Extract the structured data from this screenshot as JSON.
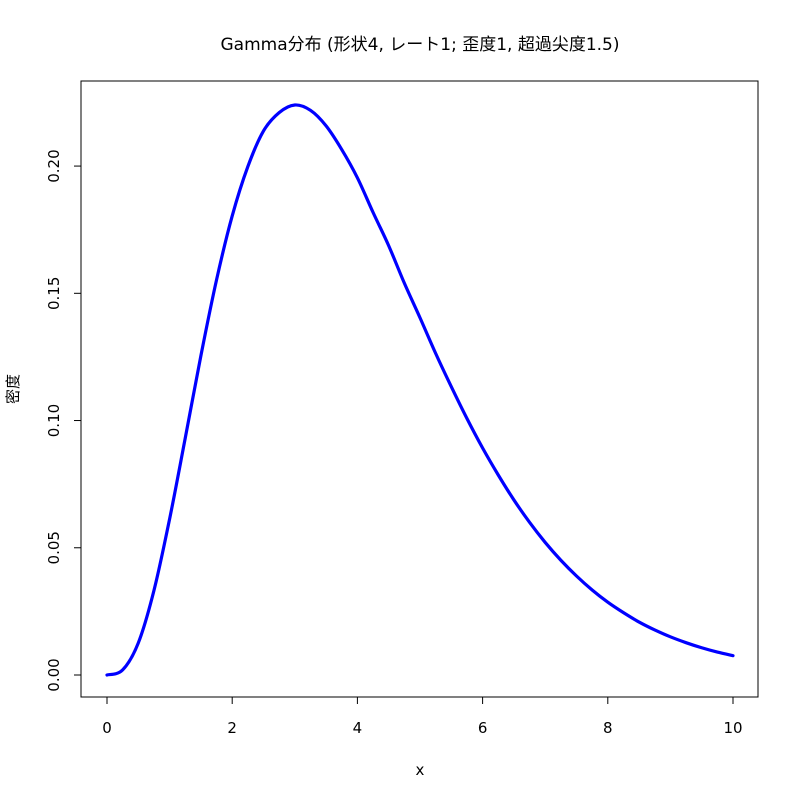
{
  "chart_data": {
    "type": "line",
    "title": "Gamma分布 (形状4, レート1; 歪度1, 超過尖度1.5)",
    "xlabel": "x",
    "ylabel": "密度",
    "xlim": [
      0,
      10
    ],
    "ylim": [
      0,
      0.224
    ],
    "x_ticks": [
      "0",
      "2",
      "4",
      "6",
      "8",
      "10"
    ],
    "y_ticks": [
      "0.00",
      "0.05",
      "0.10",
      "0.15",
      "0.20"
    ],
    "grid": false,
    "legend": "none",
    "line_color": "#0000ff",
    "series": [
      {
        "x": [
          0,
          0.25,
          0.5,
          0.75,
          1,
          1.25,
          1.5,
          1.75,
          2,
          2.25,
          2.5,
          2.75,
          3,
          3.25,
          3.5,
          3.75,
          4,
          4.25,
          4.5,
          4.75,
          5,
          5.25,
          5.5,
          5.75,
          6,
          6.25,
          6.5,
          6.75,
          7,
          7.25,
          7.5,
          7.75,
          8,
          8.25,
          8.5,
          8.75,
          9,
          9.25,
          9.5,
          9.75,
          10
        ],
        "values": [
          0,
          0.002,
          0.0126,
          0.0332,
          0.0613,
          0.0931,
          0.1255,
          0.1553,
          0.1804,
          0.1998,
          0.2138,
          0.221,
          0.224,
          0.2219,
          0.2158,
          0.2065,
          0.1954,
          0.1818,
          0.1687,
          0.154,
          0.1404,
          0.1264,
          0.1133,
          0.1008,
          0.0892,
          0.0786,
          0.0688,
          0.06,
          0.0521,
          0.0451,
          0.0389,
          0.0334,
          0.0286,
          0.0245,
          0.0208,
          0.0177,
          0.015,
          0.0127,
          0.0107,
          0.009,
          0.0076
        ]
      }
    ]
  }
}
